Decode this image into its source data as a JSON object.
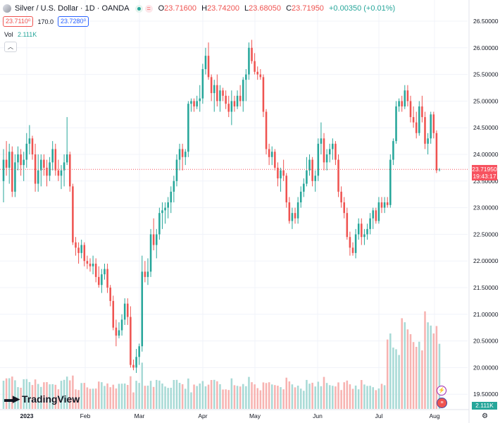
{
  "header": {
    "symbol": "Silver / U.S. Dollar · 1D · OANDA",
    "ohlc": [
      {
        "k": "O",
        "v": "23.71600"
      },
      {
        "k": "H",
        "v": "23.74200"
      },
      {
        "k": "L",
        "v": "23.68050"
      },
      {
        "k": "C",
        "v": "23.71950"
      }
    ],
    "change": "+0.00350 (+0.01%)",
    "bid": "23.7110⁰",
    "spread": "170.0",
    "ask": "23.7280⁰"
  },
  "volume": {
    "label": "Vol",
    "value": "2.111K"
  },
  "branding": {
    "name": "TradingView"
  },
  "price_tag": {
    "price": "23.71950",
    "countdown": "19:43:17"
  },
  "colors": {
    "up": "#26a69a",
    "down": "#ef5350",
    "vol_up": "#a8dad6",
    "vol_down": "#f7b3b1"
  },
  "icons": {
    "symbol": "silver-coin-icon",
    "collapse": "chevron-up-icon",
    "flash": "lightning-icon",
    "flag": "us-flag-icon",
    "gear": "gear-icon"
  },
  "chart_data": {
    "type": "candlestick",
    "y_ticks": [
      "26.50000",
      "26.00000",
      "25.50000",
      "25.00000",
      "24.50000",
      "24.00000",
      "23.50000",
      "23.00000",
      "22.50000",
      "22.00000",
      "21.50000",
      "21.00000",
      "20.50000",
      "20.00000",
      "19.50000"
    ],
    "x_ticks": [
      "2023",
      "Feb",
      "Mar",
      "Apr",
      "May",
      "Jun",
      "Jul",
      "Aug"
    ],
    "ylim": [
      19.35,
      26.75
    ],
    "last_price": 23.7195,
    "grid": true,
    "candles": [
      {
        "d": "Jan 2",
        "o": 23.5,
        "h": 24.1,
        "l": 23.1,
        "c": 23.9
      },
      {
        "d": "Jan 3",
        "o": 23.9,
        "h": 24.25,
        "l": 23.6,
        "c": 23.75
      },
      {
        "d": "Jan 4",
        "o": 23.75,
        "h": 24.2,
        "l": 23.45,
        "c": 24.05
      },
      {
        "d": "Jan 5",
        "o": 24.05,
        "h": 24.15,
        "l": 23.2,
        "c": 23.3
      },
      {
        "d": "Jan 6",
        "o": 23.3,
        "h": 24.0,
        "l": 23.2,
        "c": 23.85
      },
      {
        "d": "Jan 9",
        "o": 23.85,
        "h": 24.15,
        "l": 23.7,
        "c": 24.0
      },
      {
        "d": "Jan 10",
        "o": 24.0,
        "h": 24.1,
        "l": 23.6,
        "c": 23.8
      },
      {
        "d": "Jan 11",
        "o": 23.8,
        "h": 24.05,
        "l": 23.5,
        "c": 23.9
      },
      {
        "d": "Jan 12",
        "o": 23.9,
        "h": 24.4,
        "l": 23.75,
        "c": 24.2
      },
      {
        "d": "Jan 13",
        "o": 24.2,
        "h": 24.55,
        "l": 24.0,
        "c": 24.3
      },
      {
        "d": "Jan 16",
        "o": 24.3,
        "h": 24.35,
        "l": 23.9,
        "c": 24.0
      },
      {
        "d": "Jan 17",
        "o": 24.0,
        "h": 24.2,
        "l": 23.3,
        "c": 23.45
      },
      {
        "d": "Jan 18",
        "o": 23.45,
        "h": 24.0,
        "l": 23.3,
        "c": 23.7
      },
      {
        "d": "Jan 19",
        "o": 23.7,
        "h": 24.0,
        "l": 23.4,
        "c": 23.9
      },
      {
        "d": "Jan 20",
        "o": 23.9,
        "h": 24.0,
        "l": 23.6,
        "c": 23.75
      },
      {
        "d": "Jan 23",
        "o": 23.75,
        "h": 23.9,
        "l": 23.4,
        "c": 23.6
      },
      {
        "d": "Jan 24",
        "o": 23.6,
        "h": 23.95,
        "l": 23.5,
        "c": 23.85
      },
      {
        "d": "Jan 25",
        "o": 23.85,
        "h": 24.25,
        "l": 23.7,
        "c": 24.1
      },
      {
        "d": "Jan 26",
        "o": 24.1,
        "h": 24.2,
        "l": 23.6,
        "c": 23.7
      },
      {
        "d": "Jan 27",
        "o": 23.7,
        "h": 23.9,
        "l": 23.5,
        "c": 23.6
      },
      {
        "d": "Jan 30",
        "o": 23.6,
        "h": 23.8,
        "l": 23.35,
        "c": 23.7
      },
      {
        "d": "Jan 31",
        "o": 23.7,
        "h": 24.0,
        "l": 23.4,
        "c": 23.85
      },
      {
        "d": "Feb 1",
        "o": 23.85,
        "h": 24.7,
        "l": 23.8,
        "c": 24.0
      },
      {
        "d": "Feb 2",
        "o": 24.0,
        "h": 24.05,
        "l": 23.3,
        "c": 23.4
      },
      {
        "d": "Feb 3",
        "o": 23.4,
        "h": 23.45,
        "l": 22.3,
        "c": 22.35
      },
      {
        "d": "Feb 6",
        "o": 22.35,
        "h": 22.45,
        "l": 22.1,
        "c": 22.25
      },
      {
        "d": "Feb 7",
        "o": 22.25,
        "h": 22.35,
        "l": 21.95,
        "c": 22.15
      },
      {
        "d": "Feb 8",
        "o": 22.15,
        "h": 22.4,
        "l": 22.05,
        "c": 22.3
      },
      {
        "d": "Feb 9",
        "o": 22.3,
        "h": 22.35,
        "l": 21.9,
        "c": 22.0
      },
      {
        "d": "Feb 10",
        "o": 22.0,
        "h": 22.1,
        "l": 21.85,
        "c": 21.95
      },
      {
        "d": "Feb 13",
        "o": 21.95,
        "h": 22.05,
        "l": 21.8,
        "c": 21.9
      },
      {
        "d": "Feb 14",
        "o": 21.9,
        "h": 22.1,
        "l": 21.75,
        "c": 21.95
      },
      {
        "d": "Feb 15",
        "o": 21.95,
        "h": 22.05,
        "l": 21.6,
        "c": 21.7
      },
      {
        "d": "Feb 16",
        "o": 21.7,
        "h": 21.9,
        "l": 21.5,
        "c": 21.55
      },
      {
        "d": "Feb 17",
        "o": 21.55,
        "h": 21.85,
        "l": 21.4,
        "c": 21.75
      },
      {
        "d": "Feb 20",
        "o": 21.75,
        "h": 21.95,
        "l": 21.65,
        "c": 21.85
      },
      {
        "d": "Feb 21",
        "o": 21.85,
        "h": 21.95,
        "l": 21.4,
        "c": 21.5
      },
      {
        "d": "Feb 22",
        "o": 21.5,
        "h": 21.55,
        "l": 21.15,
        "c": 21.25
      },
      {
        "d": "Feb 23",
        "o": 21.25,
        "h": 21.35,
        "l": 20.7,
        "c": 20.75
      },
      {
        "d": "Feb 24",
        "o": 20.75,
        "h": 20.9,
        "l": 20.4,
        "c": 20.6
      },
      {
        "d": "Feb 27",
        "o": 20.6,
        "h": 20.85,
        "l": 20.55,
        "c": 20.7
      },
      {
        "d": "Feb 28",
        "o": 20.7,
        "h": 21.0,
        "l": 20.6,
        "c": 20.9
      },
      {
        "d": "Mar 1",
        "o": 20.9,
        "h": 21.3,
        "l": 20.8,
        "c": 21.2
      },
      {
        "d": "Mar 2",
        "o": 21.2,
        "h": 21.3,
        "l": 20.8,
        "c": 20.95
      },
      {
        "d": "Mar 3",
        "o": 20.95,
        "h": 21.15,
        "l": 20.0,
        "c": 20.05
      },
      {
        "d": "Mar 6",
        "o": 20.05,
        "h": 20.15,
        "l": 19.95,
        "c": 20.0
      },
      {
        "d": "Mar 7",
        "o": 20.0,
        "h": 20.35,
        "l": 19.9,
        "c": 20.2
      },
      {
        "d": "Mar 8",
        "o": 20.2,
        "h": 20.45,
        "l": 20.05,
        "c": 20.4
      },
      {
        "d": "Mar 9",
        "o": 20.4,
        "h": 22.1,
        "l": 20.3,
        "c": 21.8
      },
      {
        "d": "Mar 10",
        "o": 21.8,
        "h": 22.0,
        "l": 21.6,
        "c": 21.7
      },
      {
        "d": "Mar 13",
        "o": 21.7,
        "h": 22.05,
        "l": 21.55,
        "c": 21.8
      },
      {
        "d": "Mar 14",
        "o": 21.8,
        "h": 22.6,
        "l": 21.7,
        "c": 22.5
      },
      {
        "d": "Mar 15",
        "o": 22.5,
        "h": 22.8,
        "l": 22.2,
        "c": 22.3
      },
      {
        "d": "Mar 16",
        "o": 22.3,
        "h": 22.6,
        "l": 22.05,
        "c": 22.5
      },
      {
        "d": "Mar 17",
        "o": 22.5,
        "h": 23.0,
        "l": 22.4,
        "c": 22.9
      },
      {
        "d": "Mar 20",
        "o": 22.9,
        "h": 23.1,
        "l": 22.6,
        "c": 22.95
      },
      {
        "d": "Mar 21",
        "o": 22.95,
        "h": 23.1,
        "l": 22.7,
        "c": 23.0
      },
      {
        "d": "Mar 22",
        "o": 23.0,
        "h": 23.2,
        "l": 22.8,
        "c": 23.1
      },
      {
        "d": "Mar 23",
        "o": 23.1,
        "h": 23.4,
        "l": 22.9,
        "c": 23.3
      },
      {
        "d": "Mar 24",
        "o": 23.3,
        "h": 23.6,
        "l": 23.1,
        "c": 23.5
      },
      {
        "d": "Mar 27",
        "o": 23.5,
        "h": 24.0,
        "l": 23.4,
        "c": 23.9
      },
      {
        "d": "Mar 28",
        "o": 23.9,
        "h": 24.2,
        "l": 23.7,
        "c": 24.1
      },
      {
        "d": "Mar 29",
        "o": 24.1,
        "h": 24.2,
        "l": 23.7,
        "c": 23.95
      },
      {
        "d": "Mar 30",
        "o": 23.95,
        "h": 24.1,
        "l": 23.8,
        "c": 24.05
      },
      {
        "d": "Apr 3",
        "o": 24.05,
        "h": 25.0,
        "l": 23.95,
        "c": 24.95
      },
      {
        "d": "Apr 4",
        "o": 24.95,
        "h": 25.05,
        "l": 24.8,
        "c": 25.0
      },
      {
        "d": "Apr 5",
        "o": 25.0,
        "h": 25.05,
        "l": 24.8,
        "c": 24.9
      },
      {
        "d": "Apr 6",
        "o": 24.9,
        "h": 25.1,
        "l": 24.85,
        "c": 25.0
      },
      {
        "d": "Apr 10",
        "o": 25.0,
        "h": 25.3,
        "l": 24.8,
        "c": 25.05
      },
      {
        "d": "Apr 11",
        "o": 25.05,
        "h": 25.7,
        "l": 24.95,
        "c": 25.6
      },
      {
        "d": "Apr 12",
        "o": 25.6,
        "h": 26.0,
        "l": 25.5,
        "c": 25.85
      },
      {
        "d": "Apr 13",
        "o": 25.85,
        "h": 26.1,
        "l": 25.4,
        "c": 25.45
      },
      {
        "d": "Apr 14",
        "o": 25.45,
        "h": 25.5,
        "l": 25.0,
        "c": 25.15
      },
      {
        "d": "Apr 17",
        "o": 25.15,
        "h": 25.4,
        "l": 24.8,
        "c": 25.3
      },
      {
        "d": "Apr 18",
        "o": 25.3,
        "h": 25.5,
        "l": 24.9,
        "c": 25.0
      },
      {
        "d": "Apr 19",
        "o": 25.0,
        "h": 25.3,
        "l": 24.8,
        "c": 25.2
      },
      {
        "d": "Apr 20",
        "o": 25.2,
        "h": 25.25,
        "l": 25.0,
        "c": 25.1
      },
      {
        "d": "Apr 21",
        "o": 25.1,
        "h": 25.2,
        "l": 24.85,
        "c": 24.95
      },
      {
        "d": "Apr 24",
        "o": 24.95,
        "h": 25.1,
        "l": 24.7,
        "c": 24.8
      },
      {
        "d": "Apr 25",
        "o": 24.8,
        "h": 25.2,
        "l": 24.55,
        "c": 25.0
      },
      {
        "d": "Apr 26",
        "o": 25.0,
        "h": 25.1,
        "l": 24.8,
        "c": 24.9
      },
      {
        "d": "Apr 27",
        "o": 24.9,
        "h": 25.2,
        "l": 24.85,
        "c": 25.1
      },
      {
        "d": "Apr 28",
        "o": 25.1,
        "h": 25.3,
        "l": 24.9,
        "c": 25.0
      },
      {
        "d": "May 1",
        "o": 25.0,
        "h": 25.45,
        "l": 24.8,
        "c": 25.4
      },
      {
        "d": "May 2",
        "o": 25.4,
        "h": 25.6,
        "l": 25.0,
        "c": 25.5
      },
      {
        "d": "May 3",
        "o": 25.5,
        "h": 26.1,
        "l": 25.4,
        "c": 26.0
      },
      {
        "d": "May 4",
        "o": 26.0,
        "h": 26.15,
        "l": 25.7,
        "c": 25.75
      },
      {
        "d": "May 5",
        "o": 25.75,
        "h": 25.9,
        "l": 25.5,
        "c": 25.55
      },
      {
        "d": "May 8",
        "o": 25.55,
        "h": 25.65,
        "l": 25.4,
        "c": 25.5
      },
      {
        "d": "May 9",
        "o": 25.5,
        "h": 25.6,
        "l": 25.4,
        "c": 25.45
      },
      {
        "d": "May 10",
        "o": 25.45,
        "h": 25.5,
        "l": 24.7,
        "c": 24.8
      },
      {
        "d": "May 11",
        "o": 24.8,
        "h": 24.85,
        "l": 24.0,
        "c": 24.1
      },
      {
        "d": "May 12",
        "o": 24.1,
        "h": 24.2,
        "l": 23.8,
        "c": 23.95
      },
      {
        "d": "May 15",
        "o": 23.95,
        "h": 24.15,
        "l": 23.8,
        "c": 24.05
      },
      {
        "d": "May 16",
        "o": 24.05,
        "h": 24.1,
        "l": 23.7,
        "c": 23.75
      },
      {
        "d": "May 17",
        "o": 23.75,
        "h": 23.85,
        "l": 23.4,
        "c": 23.55
      },
      {
        "d": "May 18",
        "o": 23.55,
        "h": 23.75,
        "l": 23.3,
        "c": 23.7
      },
      {
        "d": "May 19",
        "o": 23.7,
        "h": 23.9,
        "l": 23.5,
        "c": 23.6
      },
      {
        "d": "May 22",
        "o": 23.6,
        "h": 23.65,
        "l": 23.0,
        "c": 23.1
      },
      {
        "d": "May 23",
        "o": 23.1,
        "h": 23.2,
        "l": 22.7,
        "c": 22.75
      },
      {
        "d": "May 24",
        "o": 22.75,
        "h": 23.0,
        "l": 22.6,
        "c": 22.9
      },
      {
        "d": "May 25",
        "o": 22.9,
        "h": 23.0,
        "l": 22.7,
        "c": 22.8
      },
      {
        "d": "May 26",
        "o": 22.8,
        "h": 23.2,
        "l": 22.7,
        "c": 23.1
      },
      {
        "d": "May 29",
        "o": 23.1,
        "h": 23.4,
        "l": 23.0,
        "c": 23.3
      },
      {
        "d": "May 30",
        "o": 23.3,
        "h": 23.55,
        "l": 23.2,
        "c": 23.45
      },
      {
        "d": "May 31",
        "o": 23.45,
        "h": 23.95,
        "l": 23.4,
        "c": 23.7
      },
      {
        "d": "Jun 1",
        "o": 23.7,
        "h": 24.0,
        "l": 23.6,
        "c": 23.9
      },
      {
        "d": "Jun 2",
        "o": 23.9,
        "h": 23.95,
        "l": 23.4,
        "c": 23.5
      },
      {
        "d": "Jun 5",
        "o": 23.5,
        "h": 23.7,
        "l": 23.3,
        "c": 23.6
      },
      {
        "d": "Jun 6",
        "o": 23.6,
        "h": 24.3,
        "l": 23.5,
        "c": 24.2
      },
      {
        "d": "Jun 7",
        "o": 24.2,
        "h": 24.6,
        "l": 24.0,
        "c": 24.3
      },
      {
        "d": "Jun 8",
        "o": 24.3,
        "h": 24.4,
        "l": 23.7,
        "c": 23.85
      },
      {
        "d": "Jun 9",
        "o": 23.85,
        "h": 24.1,
        "l": 23.7,
        "c": 24.0
      },
      {
        "d": "Jun 12",
        "o": 24.0,
        "h": 24.2,
        "l": 23.85,
        "c": 24.1
      },
      {
        "d": "Jun 13",
        "o": 24.1,
        "h": 24.3,
        "l": 23.9,
        "c": 24.2
      },
      {
        "d": "Jun 14",
        "o": 24.2,
        "h": 24.25,
        "l": 23.8,
        "c": 23.9
      },
      {
        "d": "Jun 15",
        "o": 23.9,
        "h": 24.0,
        "l": 23.2,
        "c": 23.3
      },
      {
        "d": "Jun 16",
        "o": 23.3,
        "h": 23.4,
        "l": 23.0,
        "c": 23.1
      },
      {
        "d": "Jun 19",
        "o": 23.1,
        "h": 23.2,
        "l": 22.8,
        "c": 22.9
      },
      {
        "d": "Jun 20",
        "o": 22.9,
        "h": 23.0,
        "l": 22.4,
        "c": 22.45
      },
      {
        "d": "Jun 21",
        "o": 22.45,
        "h": 22.55,
        "l": 22.1,
        "c": 22.25
      },
      {
        "d": "Jun 22",
        "o": 22.25,
        "h": 22.35,
        "l": 22.1,
        "c": 22.15
      },
      {
        "d": "Jun 23",
        "o": 22.15,
        "h": 22.6,
        "l": 22.05,
        "c": 22.5
      },
      {
        "d": "Jun 26",
        "o": 22.5,
        "h": 22.8,
        "l": 22.4,
        "c": 22.7
      },
      {
        "d": "Jun 27",
        "o": 22.7,
        "h": 22.8,
        "l": 22.3,
        "c": 22.45
      },
      {
        "d": "Jun 28",
        "o": 22.45,
        "h": 22.6,
        "l": 22.3,
        "c": 22.5
      },
      {
        "d": "Jun 29",
        "o": 22.5,
        "h": 22.7,
        "l": 22.4,
        "c": 22.6
      },
      {
        "d": "Jun 30",
        "o": 22.6,
        "h": 22.9,
        "l": 22.5,
        "c": 22.8
      },
      {
        "d": "Jul 3",
        "o": 22.8,
        "h": 23.0,
        "l": 22.6,
        "c": 22.95
      },
      {
        "d": "Jul 4",
        "o": 22.95,
        "h": 23.0,
        "l": 22.7,
        "c": 22.75
      },
      {
        "d": "Jul 5",
        "o": 22.75,
        "h": 23.2,
        "l": 22.7,
        "c": 23.1
      },
      {
        "d": "Jul 6",
        "o": 23.1,
        "h": 23.2,
        "l": 22.9,
        "c": 23.0
      },
      {
        "d": "Jul 7",
        "o": 23.0,
        "h": 23.2,
        "l": 22.9,
        "c": 23.1
      },
      {
        "d": "Jul 10",
        "o": 23.1,
        "h": 23.2,
        "l": 23.0,
        "c": 23.05
      },
      {
        "d": "Jul 11",
        "o": 23.05,
        "h": 24.0,
        "l": 23.0,
        "c": 23.9
      },
      {
        "d": "Jul 12",
        "o": 23.9,
        "h": 24.3,
        "l": 23.8,
        "c": 24.25
      },
      {
        "d": "Jul 13",
        "o": 24.25,
        "h": 25.0,
        "l": 24.2,
        "c": 24.9
      },
      {
        "d": "Jul 14",
        "o": 24.9,
        "h": 25.05,
        "l": 24.8,
        "c": 25.0
      },
      {
        "d": "Jul 17",
        "o": 25.0,
        "h": 25.1,
        "l": 24.8,
        "c": 24.9
      },
      {
        "d": "Jul 18",
        "o": 24.9,
        "h": 25.3,
        "l": 24.85,
        "c": 25.2
      },
      {
        "d": "Jul 19",
        "o": 25.2,
        "h": 25.3,
        "l": 24.9,
        "c": 25.0
      },
      {
        "d": "Jul 20",
        "o": 25.0,
        "h": 25.1,
        "l": 24.6,
        "c": 24.7
      },
      {
        "d": "Jul 21",
        "o": 24.7,
        "h": 24.9,
        "l": 24.5,
        "c": 24.6
      },
      {
        "d": "Jul 24",
        "o": 24.6,
        "h": 24.8,
        "l": 24.3,
        "c": 24.4
      },
      {
        "d": "Jul 25",
        "o": 24.4,
        "h": 25.0,
        "l": 24.35,
        "c": 24.9
      },
      {
        "d": "Jul 26",
        "o": 24.9,
        "h": 25.1,
        "l": 24.6,
        "c": 24.7
      },
      {
        "d": "Jul 27",
        "o": 24.7,
        "h": 24.8,
        "l": 24.1,
        "c": 24.2
      },
      {
        "d": "Jul 28",
        "o": 24.2,
        "h": 24.4,
        "l": 24.0,
        "c": 24.3
      },
      {
        "d": "Jul 31",
        "o": 24.3,
        "h": 24.8,
        "l": 24.2,
        "c": 24.75
      },
      {
        "d": "Aug 1",
        "o": 24.75,
        "h": 24.8,
        "l": 24.3,
        "c": 24.4
      },
      {
        "d": "Aug 2",
        "o": 24.4,
        "h": 24.45,
        "l": 23.65,
        "c": 23.7
      },
      {
        "d": "Aug 3",
        "o": 23.716,
        "h": 23.742,
        "l": 23.6805,
        "c": 23.7195
      }
    ],
    "volume_note": "Volume bars share the candle colors; values shown proportionally (K contracts)."
  }
}
